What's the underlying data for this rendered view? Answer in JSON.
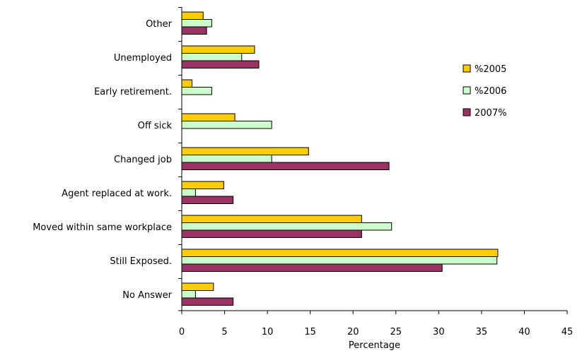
{
  "chart_data": {
    "type": "bar",
    "orientation": "horizontal",
    "xlabel": "Percentage",
    "ylabel": "",
    "xlim": [
      0,
      45
    ],
    "xticks": [
      0,
      5,
      10,
      15,
      20,
      25,
      30,
      35,
      40,
      45
    ],
    "grid": false,
    "legend_position": "right",
    "categories": [
      "Other",
      "Unemployed",
      "Early retirement.",
      "Off sick",
      "Changed job",
      "Agent replaced at work.",
      "Moved within same workplace",
      "Still Exposed.",
      "No Answer"
    ],
    "series": [
      {
        "name": "%2005",
        "color": "#FFCC00",
        "values": [
          2.5,
          8.5,
          1.2,
          6.2,
          14.8,
          4.9,
          21.0,
          36.9,
          3.7
        ]
      },
      {
        "name": "%2006",
        "color": "#CCFFCC",
        "values": [
          3.5,
          7.0,
          3.5,
          10.5,
          10.5,
          1.6,
          24.5,
          36.8,
          1.6
        ]
      },
      {
        "name": "2007%",
        "color": "#993366",
        "values": [
          2.9,
          9.0,
          0,
          0,
          24.2,
          6.0,
          21.0,
          30.4,
          6.0
        ]
      }
    ]
  }
}
